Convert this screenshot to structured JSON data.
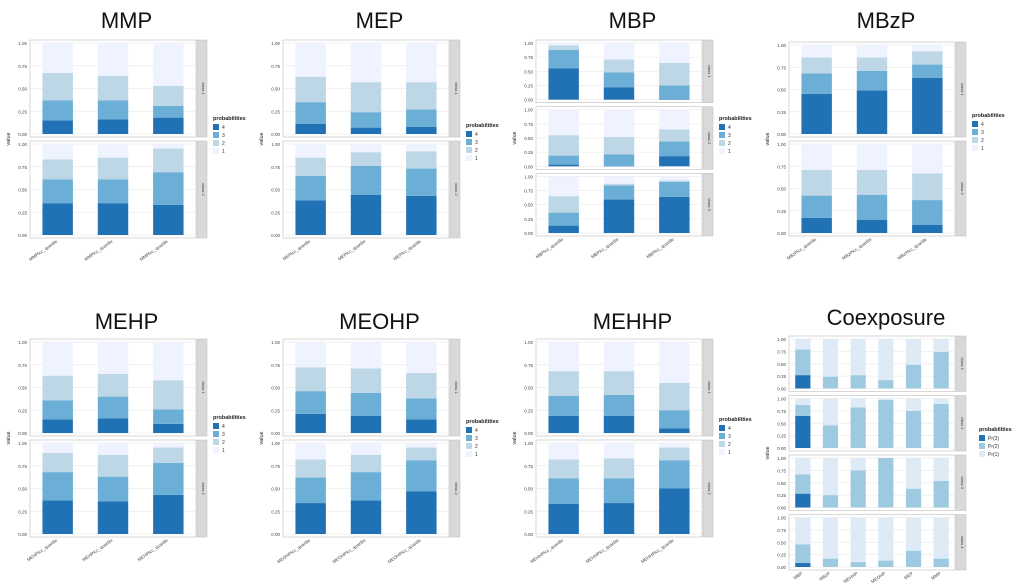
{
  "colors": {
    "p4": "#2171b5",
    "p3": "#6baed6",
    "p2": "#bdd7e7",
    "p1": "#eff3ff",
    "strip": "#d9d9d9",
    "grid": "#ebebeb"
  },
  "legend_title": "probabilities",
  "y_axis_label": "value",
  "chart_data": [
    {
      "type": "bar",
      "title": "MMP",
      "stacked": true,
      "ylabel": "value",
      "ylim": [
        0,
        1
      ],
      "yticks": [
        "0.00",
        "0.25",
        "0.50",
        "0.75",
        "1.00"
      ],
      "categories": [
        "MMPlcc_quartile",
        "MMPlcc_quartile",
        "MMPlcc_quartile"
      ],
      "legend": [
        "4",
        "3",
        "2",
        "1"
      ],
      "facets": [
        {
          "strip": "class 1",
          "values": [
            [
              0.15,
              0.22,
              0.3,
              0.33
            ],
            [
              0.16,
              0.21,
              0.27,
              0.36
            ],
            [
              0.18,
              0.13,
              0.22,
              0.47
            ]
          ]
        },
        {
          "strip": "class 2",
          "values": [
            [
              0.35,
              0.26,
              0.22,
              0.17
            ],
            [
              0.35,
              0.26,
              0.24,
              0.15
            ],
            [
              0.33,
              0.36,
              0.26,
              0.05
            ]
          ]
        }
      ]
    },
    {
      "type": "bar",
      "title": "MEP",
      "stacked": true,
      "ylabel": "value",
      "ylim": [
        0,
        1
      ],
      "yticks": [
        "0.00",
        "0.25",
        "0.50",
        "0.75",
        "1.00"
      ],
      "categories": [
        "MEPlcc_quartile",
        "MEPlcc_quartile",
        "MEPlcc_quartile"
      ],
      "legend": [
        "4",
        "3",
        "2",
        "1"
      ],
      "facets": [
        {
          "strip": "class 1",
          "values": [
            [
              0.11,
              0.24,
              0.28,
              0.37
            ],
            [
              0.07,
              0.17,
              0.33,
              0.43
            ],
            [
              0.08,
              0.19,
              0.3,
              0.43
            ]
          ]
        },
        {
          "strip": "class 2",
          "values": [
            [
              0.38,
              0.27,
              0.2,
              0.15
            ],
            [
              0.44,
              0.32,
              0.15,
              0.09
            ],
            [
              0.43,
              0.3,
              0.19,
              0.08
            ]
          ]
        }
      ]
    },
    {
      "type": "bar",
      "title": "MBP",
      "stacked": true,
      "ylabel": "value",
      "ylim": [
        0,
        1
      ],
      "yticks": [
        "0.00",
        "0.25",
        "0.50",
        "0.75",
        "1.00"
      ],
      "categories": [
        "MBPlcc_quartile",
        "MBPlcc_quartile",
        "MBPlcc_quartile"
      ],
      "legend": [
        "4",
        "3",
        "2",
        "1"
      ],
      "facets": [
        {
          "strip": "class 1",
          "values": [
            [
              0.55,
              0.33,
              0.08,
              0.04
            ],
            [
              0.22,
              0.26,
              0.23,
              0.29
            ],
            [
              0.01,
              0.24,
              0.4,
              0.35
            ]
          ]
        },
        {
          "strip": "class 2",
          "values": [
            [
              0.03,
              0.16,
              0.36,
              0.45
            ],
            [
              0.01,
              0.2,
              0.31,
              0.48
            ],
            [
              0.18,
              0.26,
              0.21,
              0.35
            ]
          ]
        },
        {
          "strip": "class 3",
          "values": [
            [
              0.13,
              0.23,
              0.29,
              0.35
            ],
            [
              0.59,
              0.25,
              0.03,
              0.13
            ],
            [
              0.64,
              0.26,
              0.03,
              0.07
            ]
          ]
        }
      ]
    },
    {
      "type": "bar",
      "title": "MBzP",
      "stacked": true,
      "ylabel": "value",
      "ylim": [
        0,
        1
      ],
      "yticks": [
        "0.00",
        "0.25",
        "0.50",
        "0.75",
        "1.00"
      ],
      "categories": [
        "MBzPlcc_quartile",
        "MBzPlcc_quartile",
        "MBzPlcc_quartile"
      ],
      "legend": [
        "4",
        "3",
        "2",
        "1"
      ],
      "facets": [
        {
          "strip": "class 1",
          "values": [
            [
              0.45,
              0.23,
              0.18,
              0.14
            ],
            [
              0.49,
              0.22,
              0.15,
              0.14
            ],
            [
              0.63,
              0.15,
              0.15,
              0.07
            ]
          ]
        },
        {
          "strip": "class 2",
          "values": [
            [
              0.17,
              0.25,
              0.29,
              0.29
            ],
            [
              0.15,
              0.28,
              0.28,
              0.29
            ],
            [
              0.09,
              0.28,
              0.3,
              0.33
            ]
          ]
        }
      ]
    },
    {
      "type": "bar",
      "title": "MEHP",
      "stacked": true,
      "ylabel": "value",
      "ylim": [
        0,
        1
      ],
      "yticks": [
        "0.00",
        "0.25",
        "0.50",
        "0.75",
        "1.00"
      ],
      "categories": [
        "MEHPlcc_quartile",
        "MEHPlcc_quartile",
        "MEHPlcc_quartile"
      ],
      "legend": [
        "4",
        "3",
        "2",
        "1"
      ],
      "facets": [
        {
          "strip": "class 1",
          "values": [
            [
              0.15,
              0.21,
              0.27,
              0.37
            ],
            [
              0.16,
              0.24,
              0.25,
              0.35
            ],
            [
              0.1,
              0.16,
              0.32,
              0.42
            ]
          ]
        },
        {
          "strip": "class 2",
          "values": [
            [
              0.37,
              0.31,
              0.21,
              0.11
            ],
            [
              0.36,
              0.27,
              0.24,
              0.13
            ],
            [
              0.43,
              0.35,
              0.17,
              0.05
            ]
          ]
        }
      ]
    },
    {
      "type": "bar",
      "title": "MEOHP",
      "stacked": true,
      "ylabel": "value",
      "ylim": [
        0,
        1
      ],
      "yticks": [
        "0.00",
        "0.25",
        "0.50",
        "0.75",
        "1.00"
      ],
      "categories": [
        "MEOHPlcc_quartile",
        "MEOHPlcc_quartile",
        "MEOHPlcc_quartile"
      ],
      "legend": [
        "4",
        "3",
        "2",
        "1"
      ],
      "facets": [
        {
          "strip": "class 1",
          "values": [
            [
              0.21,
              0.25,
              0.26,
              0.28
            ],
            [
              0.19,
              0.25,
              0.27,
              0.29
            ],
            [
              0.15,
              0.23,
              0.28,
              0.34
            ]
          ]
        },
        {
          "strip": "class 2",
          "values": [
            [
              0.34,
              0.28,
              0.2,
              0.18
            ],
            [
              0.37,
              0.31,
              0.19,
              0.13
            ],
            [
              0.47,
              0.34,
              0.14,
              0.05
            ]
          ]
        }
      ]
    },
    {
      "type": "bar",
      "title": "MEHHP",
      "stacked": true,
      "ylabel": "value",
      "ylim": [
        0,
        1
      ],
      "yticks": [
        "0.00",
        "0.25",
        "0.50",
        "0.75",
        "1.00"
      ],
      "categories": [
        "MEHHPlcc_quartile",
        "MEHHPlcc_quartile",
        "MEHHPlcc_quartile"
      ],
      "legend": [
        "4",
        "3",
        "2",
        "1"
      ],
      "facets": [
        {
          "strip": "class 1",
          "values": [
            [
              0.19,
              0.22,
              0.27,
              0.32
            ],
            [
              0.19,
              0.23,
              0.26,
              0.32
            ],
            [
              0.05,
              0.2,
              0.3,
              0.45
            ]
          ]
        },
        {
          "strip": "class 2",
          "values": [
            [
              0.33,
              0.28,
              0.21,
              0.18
            ],
            [
              0.34,
              0.27,
              0.22,
              0.17
            ],
            [
              0.5,
              0.31,
              0.14,
              0.05
            ]
          ]
        }
      ]
    },
    {
      "type": "bar",
      "title": "Coexposure",
      "stacked": true,
      "ylabel": "value",
      "ylim": [
        0,
        1
      ],
      "yticks": [
        "0.00",
        "0.25",
        "0.50",
        "0.75",
        "1.00"
      ],
      "categories": [
        "MBP",
        "MBzP",
        "MEHHP",
        "MEOHP",
        "MEP",
        "MMP"
      ],
      "legend": [
        "Pr(3)",
        "Pr(2)",
        "Pr(1)"
      ],
      "facets": [
        {
          "strip": "class 1",
          "values": [
            [
              0.27,
              0.52,
              0.21
            ],
            [
              0.0,
              0.24,
              0.76
            ],
            [
              0.0,
              0.27,
              0.73
            ],
            [
              0.0,
              0.17,
              0.83
            ],
            [
              0.0,
              0.48,
              0.52
            ],
            [
              0.0,
              0.74,
              0.26
            ]
          ]
        },
        {
          "strip": "class 2",
          "values": [
            [
              0.65,
              0.22,
              0.13
            ],
            [
              0.0,
              0.46,
              0.54
            ],
            [
              0.0,
              0.82,
              0.18
            ],
            [
              0.0,
              0.97,
              0.03
            ],
            [
              0.0,
              0.75,
              0.25
            ],
            [
              0.0,
              0.89,
              0.11
            ]
          ]
        },
        {
          "strip": "class 3",
          "values": [
            [
              0.28,
              0.39,
              0.33
            ],
            [
              0.0,
              0.25,
              0.75
            ],
            [
              0.0,
              0.75,
              0.25
            ],
            [
              0.0,
              1.0,
              0.0
            ],
            [
              0.0,
              0.38,
              0.62
            ],
            [
              0.0,
              0.54,
              0.46
            ]
          ]
        },
        {
          "strip": "class 4",
          "values": [
            [
              0.08,
              0.38,
              0.54
            ],
            [
              0.0,
              0.17,
              0.83
            ],
            [
              0.0,
              0.1,
              0.9
            ],
            [
              0.0,
              0.13,
              0.87
            ],
            [
              0.0,
              0.33,
              0.67
            ],
            [
              0.0,
              0.17,
              0.83
            ]
          ]
        }
      ]
    }
  ]
}
